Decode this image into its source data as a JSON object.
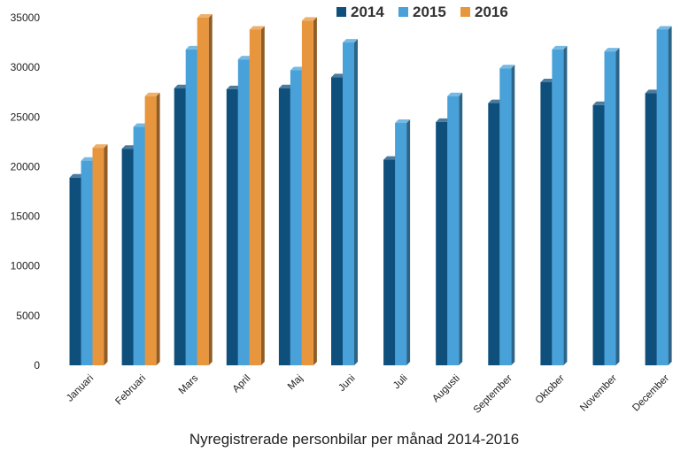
{
  "chart_data": {
    "type": "bar",
    "title": "",
    "xlabel": "Nyregistrerade personbilar per månad 2014-2016",
    "ylabel": "",
    "ylim": [
      0,
      35000
    ],
    "yticks": [
      "0",
      "5000",
      "10000",
      "15000",
      "20000",
      "25000",
      "30000",
      "35000"
    ],
    "categories": [
      "Januari",
      "Februari",
      "Mars",
      "April",
      "Maj",
      "Juni",
      "Juli",
      "Augusti",
      "September",
      "Oktober",
      "November",
      "December"
    ],
    "series": [
      {
        "name": "2014",
        "color": "#0f4f7c",
        "values": [
          18900,
          21800,
          27900,
          27800,
          27900,
          29000,
          20700,
          24500,
          26400,
          28500,
          26200,
          27400
        ]
      },
      {
        "name": "2015",
        "color": "#48a1d9",
        "values": [
          20600,
          24000,
          31800,
          30800,
          29700,
          32500,
          24400,
          27100,
          29900,
          31800,
          31600,
          33800
        ]
      },
      {
        "name": "2016",
        "color": "#e8963d",
        "values": [
          21900,
          27100,
          35000,
          33800,
          34700,
          null,
          null,
          null,
          null,
          null,
          null,
          null
        ]
      }
    ],
    "legend_position": "top-center",
    "grid": false
  }
}
